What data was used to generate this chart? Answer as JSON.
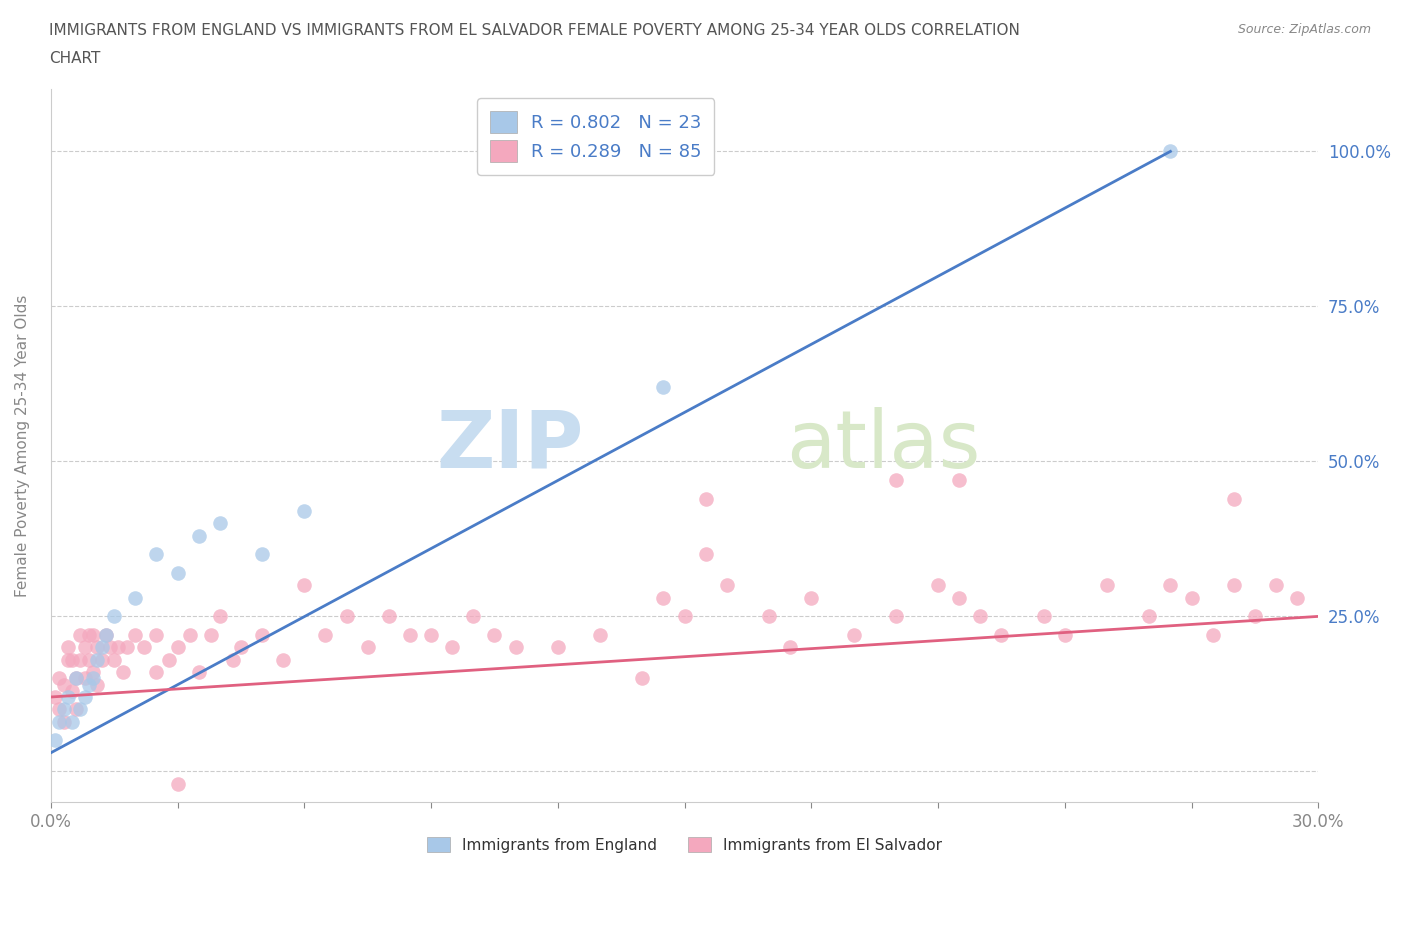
{
  "title_line1": "IMMIGRANTS FROM ENGLAND VS IMMIGRANTS FROM EL SALVADOR FEMALE POVERTY AMONG 25-34 YEAR OLDS CORRELATION",
  "title_line2": "CHART",
  "source": "Source: ZipAtlas.com",
  "ylabel": "Female Poverty Among 25-34 Year Olds",
  "xlim": [
    0.0,
    0.3
  ],
  "ylim": [
    -0.05,
    1.1
  ],
  "xticks": [
    0.0,
    0.03,
    0.06,
    0.09,
    0.12,
    0.15,
    0.18,
    0.21,
    0.24,
    0.27,
    0.3
  ],
  "xticklabels": [
    "0.0%",
    "",
    "",
    "",
    "",
    "",
    "",
    "",
    "",
    "",
    "30.0%"
  ],
  "right_yticks": [
    0.0,
    0.25,
    0.5,
    0.75,
    1.0
  ],
  "right_yticklabels": [
    "",
    "25.0%",
    "50.0%",
    "75.0%",
    "100.0%"
  ],
  "watermark": "ZIPatlas",
  "legend_england": "R = 0.802   N = 23",
  "legend_elsalvador": "R = 0.289   N = 85",
  "legend_label_england": "Immigrants from England",
  "legend_label_elsalvador": "Immigrants from El Salvador",
  "color_england": "#a8c8e8",
  "color_elsalvador": "#f4a8be",
  "color_line_england": "#4a7cc7",
  "color_line_elsalvador": "#e06080",
  "england_x": [
    0.001,
    0.002,
    0.003,
    0.004,
    0.005,
    0.006,
    0.007,
    0.008,
    0.009,
    0.01,
    0.011,
    0.012,
    0.013,
    0.015,
    0.02,
    0.025,
    0.03,
    0.035,
    0.04,
    0.05,
    0.06,
    0.145,
    0.265
  ],
  "england_y": [
    0.05,
    0.08,
    0.1,
    0.12,
    0.08,
    0.15,
    0.1,
    0.12,
    0.14,
    0.15,
    0.18,
    0.2,
    0.22,
    0.25,
    0.28,
    0.35,
    0.32,
    0.38,
    0.4,
    0.35,
    0.42,
    0.62,
    1.0
  ],
  "eng_line_x": [
    0.0,
    0.265
  ],
  "eng_line_y": [
    0.03,
    1.0
  ],
  "sal_line_x": [
    0.0,
    0.3
  ],
  "sal_line_y": [
    0.12,
    0.25
  ],
  "elsalvador_x": [
    0.001,
    0.002,
    0.002,
    0.003,
    0.003,
    0.004,
    0.004,
    0.005,
    0.005,
    0.006,
    0.006,
    0.007,
    0.007,
    0.008,
    0.008,
    0.009,
    0.009,
    0.01,
    0.01,
    0.011,
    0.011,
    0.012,
    0.013,
    0.014,
    0.015,
    0.016,
    0.017,
    0.018,
    0.02,
    0.022,
    0.025,
    0.025,
    0.028,
    0.03,
    0.03,
    0.033,
    0.035,
    0.038,
    0.04,
    0.043,
    0.045,
    0.05,
    0.055,
    0.06,
    0.065,
    0.07,
    0.075,
    0.08,
    0.085,
    0.09,
    0.095,
    0.1,
    0.105,
    0.11,
    0.12,
    0.13,
    0.14,
    0.145,
    0.15,
    0.155,
    0.16,
    0.17,
    0.175,
    0.18,
    0.19,
    0.2,
    0.21,
    0.215,
    0.22,
    0.225,
    0.235,
    0.24,
    0.25,
    0.26,
    0.265,
    0.27,
    0.275,
    0.28,
    0.285,
    0.29,
    0.295,
    0.2,
    0.215,
    0.155,
    0.28
  ],
  "elsalvador_y": [
    0.12,
    0.1,
    0.15,
    0.08,
    0.14,
    0.18,
    0.2,
    0.13,
    0.18,
    0.15,
    0.1,
    0.18,
    0.22,
    0.15,
    0.2,
    0.18,
    0.22,
    0.16,
    0.22,
    0.2,
    0.14,
    0.18,
    0.22,
    0.2,
    0.18,
    0.2,
    0.16,
    0.2,
    0.22,
    0.2,
    0.16,
    0.22,
    0.18,
    -0.02,
    0.2,
    0.22,
    0.16,
    0.22,
    0.25,
    0.18,
    0.2,
    0.22,
    0.18,
    0.3,
    0.22,
    0.25,
    0.2,
    0.25,
    0.22,
    0.22,
    0.2,
    0.25,
    0.22,
    0.2,
    0.2,
    0.22,
    0.15,
    0.28,
    0.25,
    0.35,
    0.3,
    0.25,
    0.2,
    0.28,
    0.22,
    0.25,
    0.3,
    0.28,
    0.25,
    0.22,
    0.25,
    0.22,
    0.3,
    0.25,
    0.3,
    0.28,
    0.22,
    0.3,
    0.25,
    0.3,
    0.28,
    0.47,
    0.47,
    0.44,
    0.44
  ]
}
